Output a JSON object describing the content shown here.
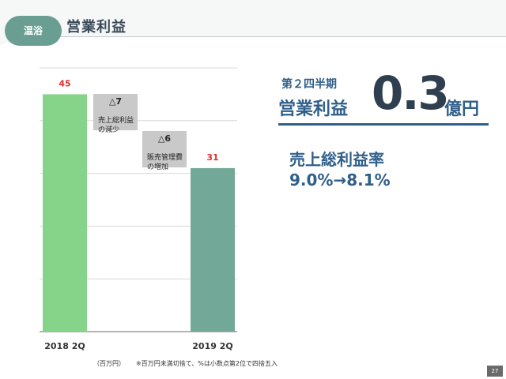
{
  "header": {
    "badge": "温浴",
    "title": "営業利益",
    "accent_color": "#6a9e92"
  },
  "chart_data": {
    "type": "bar",
    "categories": [
      "2018 2Q",
      "2019 2Q"
    ],
    "values": [
      45,
      31
    ],
    "value_labels": [
      "45",
      "31"
    ],
    "bar_colors": [
      "#86d48a",
      "#72a897"
    ],
    "ylim": [
      0,
      50
    ],
    "grid": true,
    "bridge": [
      {
        "value": "△7",
        "desc": [
          "売上総利益",
          "の減少"
        ],
        "from": 45,
        "to": 38
      },
      {
        "value": "△6",
        "desc": [
          "販売管理費",
          "の増加"
        ],
        "from": 38,
        "to": 31
      }
    ],
    "unit": "（百万円）"
  },
  "note": "※百万円未満切捨て、%は小数点第2位で四捨五入",
  "kpi": {
    "period": "第２四半期",
    "label": "営業利益",
    "value": "0.3",
    "unit": "億円",
    "ratio_label": "売上総利益率",
    "ratio_value": "9.0%→8.1%"
  },
  "page_number": "27"
}
